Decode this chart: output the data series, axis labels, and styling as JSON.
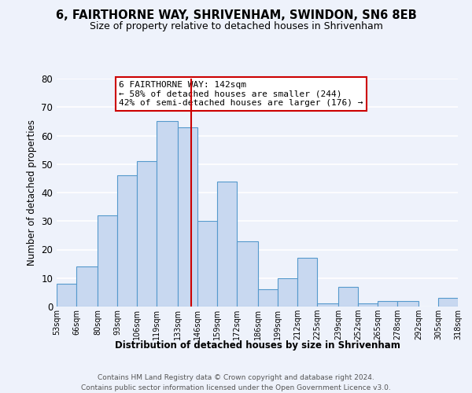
{
  "title": "6, FAIRTHORNE WAY, SHRIVENHAM, SWINDON, SN6 8EB",
  "subtitle": "Size of property relative to detached houses in Shrivenham",
  "xlabel": "Distribution of detached houses by size in Shrivenham",
  "ylabel": "Number of detached properties",
  "bar_edges": [
    53,
    66,
    80,
    93,
    106,
    119,
    133,
    146,
    159,
    172,
    186,
    199,
    212,
    225,
    239,
    252,
    265,
    278,
    292,
    305,
    318
  ],
  "bar_heights": [
    8,
    14,
    32,
    46,
    51,
    65,
    63,
    30,
    44,
    23,
    6,
    10,
    17,
    1,
    7,
    1,
    2,
    2,
    0,
    3
  ],
  "tick_labels": [
    "53sqm",
    "66sqm",
    "80sqm",
    "93sqm",
    "106sqm",
    "119sqm",
    "133sqm",
    "146sqm",
    "159sqm",
    "172sqm",
    "186sqm",
    "199sqm",
    "212sqm",
    "225sqm",
    "239sqm",
    "252sqm",
    "265sqm",
    "278sqm",
    "292sqm",
    "305sqm",
    "318sqm"
  ],
  "bar_color": "#c8d8f0",
  "bar_edge_color": "#5599cc",
  "vline_x": 142,
  "vline_color": "#cc0000",
  "annotation_text": "6 FAIRTHORNE WAY: 142sqm\n← 58% of detached houses are smaller (244)\n42% of semi-detached houses are larger (176) →",
  "annotation_box_edge": "#cc0000",
  "ylim": [
    0,
    80
  ],
  "yticks": [
    0,
    10,
    20,
    30,
    40,
    50,
    60,
    70,
    80
  ],
  "background_color": "#eef2fb",
  "grid_color": "#ffffff",
  "footer1": "Contains HM Land Registry data © Crown copyright and database right 2024.",
  "footer2": "Contains public sector information licensed under the Open Government Licence v3.0."
}
